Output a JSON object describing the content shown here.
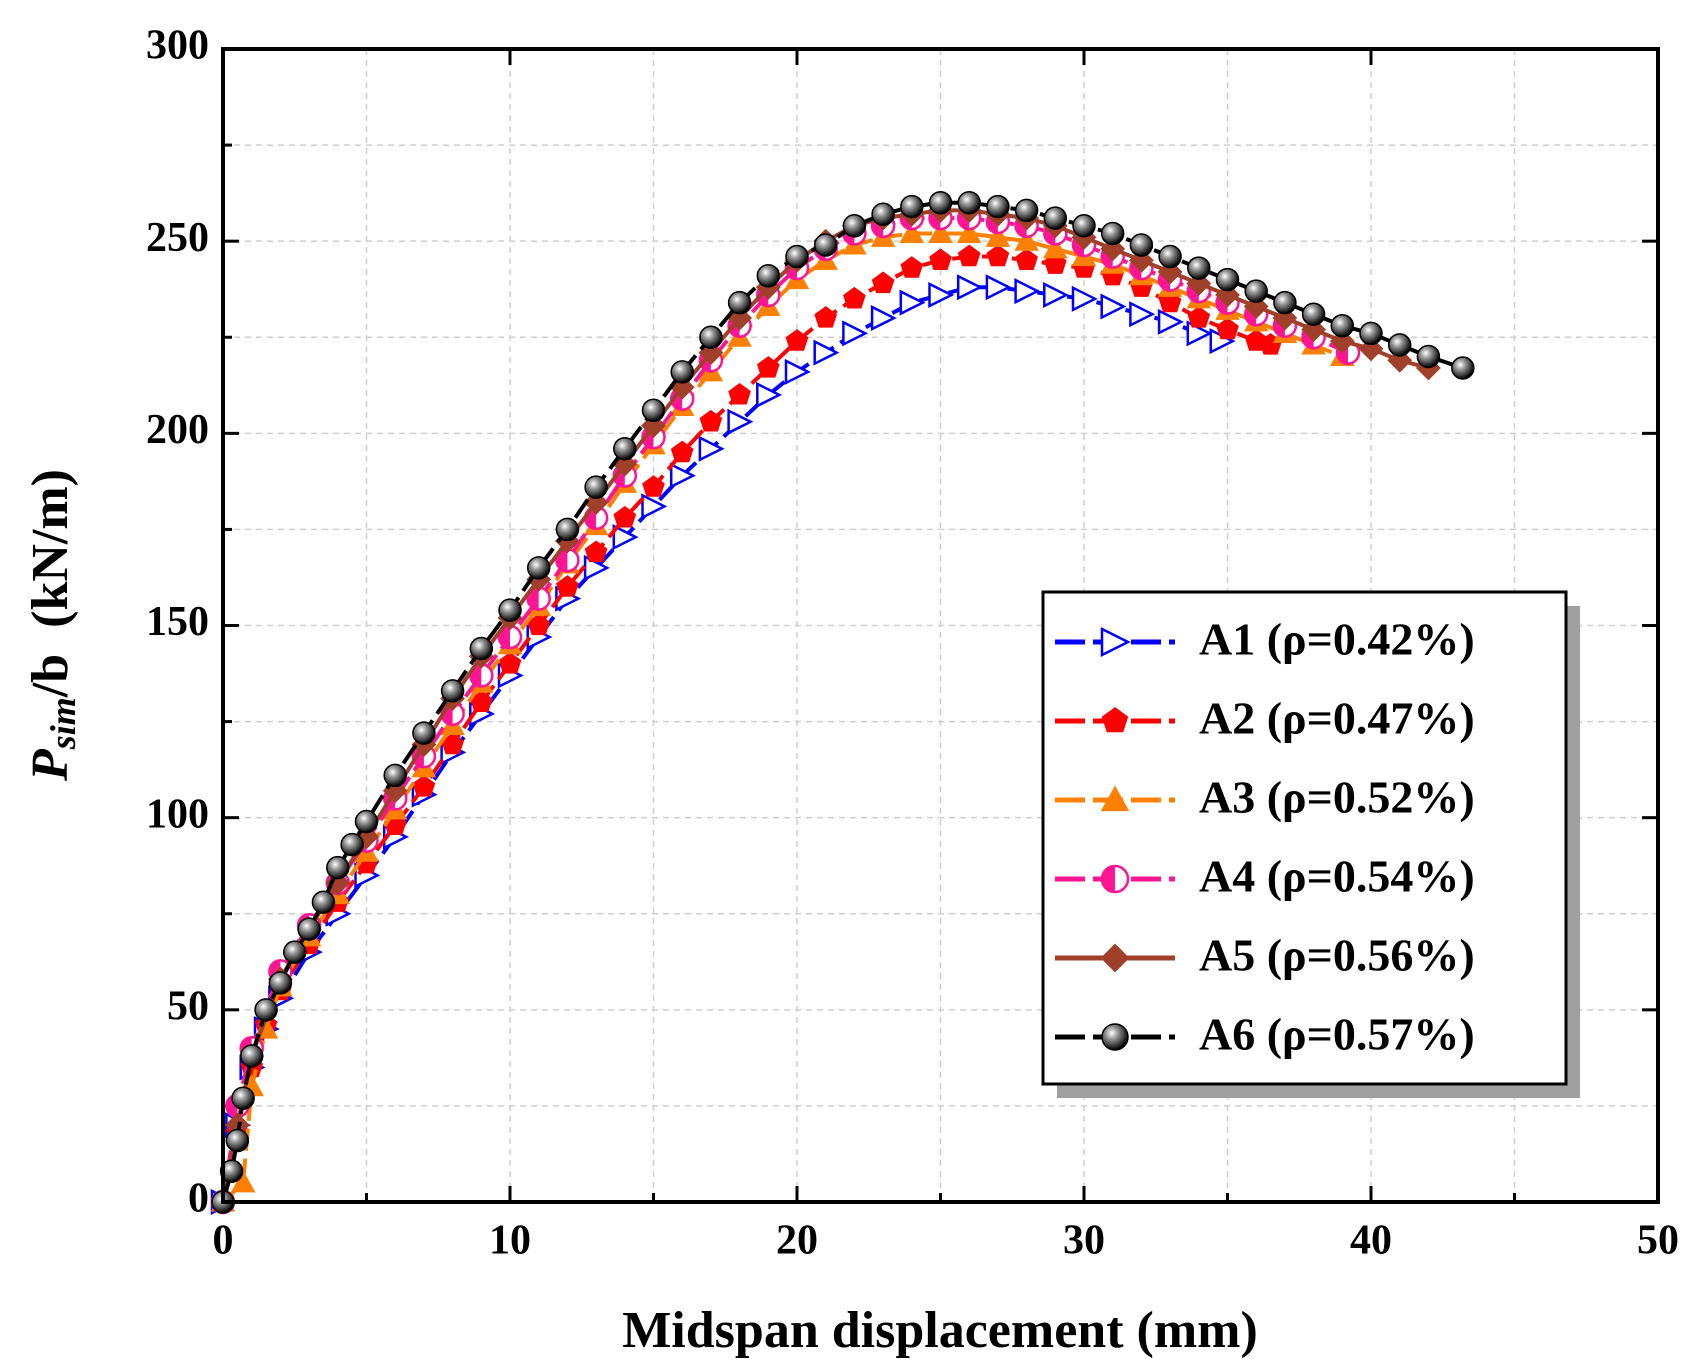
{
  "chart_data": {
    "type": "line",
    "x_label": "Midspan displacement (mm)",
    "y_label": {
      "main": "P",
      "sub": "sim",
      "rest": "/b  (kN/m)"
    },
    "xlim": [
      0,
      50
    ],
    "xticks": [
      0,
      10,
      20,
      30,
      40,
      50
    ],
    "xminor": [
      5,
      15,
      25,
      35,
      45
    ],
    "ylim": [
      0,
      300
    ],
    "yticks": [
      0,
      50,
      100,
      150,
      200,
      250,
      300
    ],
    "yminor": [
      25,
      75,
      125,
      175,
      225,
      275
    ],
    "grid": true,
    "legend": "lower right",
    "series": [
      {
        "name": "A1 (ρ=0.42%)",
        "color": "#0000ff",
        "marker": "triangle-right",
        "dash": true,
        "x": [
          0,
          0.5,
          1,
          1.5,
          2,
          3,
          4,
          5,
          6,
          7,
          8,
          9,
          10,
          11,
          12,
          13,
          14,
          15,
          16,
          17,
          18,
          19,
          20,
          21,
          22,
          23,
          24,
          25,
          26,
          27,
          28,
          29,
          30,
          31,
          32,
          33,
          34,
          34.8
        ],
        "values": [
          0,
          20,
          35,
          45,
          53,
          65,
          75,
          85,
          95,
          106,
          117,
          127,
          137,
          147,
          157,
          165,
          173,
          181,
          189,
          196,
          203,
          210,
          216,
          221,
          226,
          230,
          234,
          236,
          238,
          238,
          237,
          236,
          235,
          233,
          231,
          229,
          226,
          224
        ]
      },
      {
        "name": "A2 (ρ=0.47%)",
        "color": "#ff0000",
        "marker": "pentagon",
        "dash": true,
        "x": [
          0,
          0.5,
          1,
          1.5,
          2,
          3,
          4,
          5,
          6,
          7,
          8,
          9,
          10,
          11,
          12,
          13,
          14,
          15,
          16,
          17,
          18,
          19,
          20,
          21,
          22,
          23,
          24,
          25,
          26,
          27,
          28,
          29,
          30,
          31,
          32,
          33,
          34,
          35,
          36,
          36.5
        ],
        "values": [
          0,
          18,
          35,
          46,
          55,
          67,
          78,
          88,
          98,
          108,
          119,
          130,
          140,
          150,
          160,
          169,
          178,
          186,
          195,
          203,
          210,
          217,
          224,
          230,
          235,
          239,
          243,
          245,
          246,
          246,
          245,
          244,
          243,
          241,
          238,
          234,
          230,
          227,
          224,
          223
        ]
      },
      {
        "name": "A3 (ρ=0.52%)",
        "color": "#ff8000",
        "marker": "triangle-up",
        "dash": true,
        "x": [
          0,
          0.7,
          1,
          1.5,
          2,
          3,
          4,
          5,
          6,
          7,
          8,
          9,
          10,
          11,
          12,
          13,
          14,
          15,
          16,
          17,
          18,
          19,
          20,
          21,
          22,
          23,
          24,
          25,
          26,
          27,
          28,
          29,
          30,
          31,
          32,
          33,
          34,
          35,
          36,
          37,
          38,
          39
        ],
        "values": [
          0,
          5,
          30,
          45,
          56,
          69,
          80,
          91,
          102,
          113,
          124,
          135,
          145,
          155,
          166,
          176,
          187,
          197,
          207,
          216,
          225,
          233,
          240,
          245,
          249,
          251,
          252,
          252,
          252,
          251,
          250,
          248,
          246,
          244,
          241,
          238,
          235,
          232,
          229,
          226,
          223,
          220
        ]
      },
      {
        "name": "A4 (ρ=0.54%)",
        "color": "#ff1493",
        "marker": "half-circle",
        "dash": true,
        "x": [
          0,
          0.5,
          1,
          2,
          3,
          4,
          5,
          6,
          7,
          8,
          9,
          10,
          11,
          12,
          13,
          14,
          15,
          16,
          17,
          18,
          19,
          20,
          21,
          22,
          23,
          24,
          25,
          26,
          27,
          28,
          29,
          30,
          31,
          32,
          33,
          34,
          35,
          36,
          37,
          38,
          39.2
        ],
        "values": [
          0,
          25,
          40,
          60,
          72,
          83,
          94,
          105,
          116,
          127,
          137,
          147,
          157,
          167,
          178,
          189,
          199,
          209,
          219,
          228,
          236,
          243,
          248,
          252,
          254,
          256,
          256,
          256,
          255,
          254,
          252,
          249,
          246,
          243,
          240,
          237,
          234,
          231,
          228,
          225,
          221
        ]
      },
      {
        "name": "A5 (ρ=0.56%)",
        "color": "#a0402a",
        "marker": "diamond",
        "dash": false,
        "x": [
          0,
          0.5,
          1,
          2,
          3,
          4,
          5,
          6,
          7,
          8,
          9,
          10,
          11,
          12,
          13,
          14,
          15,
          16,
          17,
          18,
          19,
          20,
          21,
          22,
          23,
          24,
          25,
          26,
          27,
          28,
          29,
          30,
          31,
          32,
          33,
          34,
          35,
          36,
          37,
          38,
          39,
          40,
          41,
          42
        ],
        "values": [
          0,
          20,
          38,
          58,
          71,
          83,
          95,
          107,
          119,
          131,
          142,
          152,
          162,
          172,
          182,
          192,
          202,
          212,
          221,
          230,
          238,
          245,
          250,
          254,
          256,
          257,
          258,
          258,
          257,
          256,
          254,
          251,
          248,
          245,
          242,
          239,
          236,
          233,
          230,
          227,
          224,
          222,
          219,
          217
        ]
      },
      {
        "name": "A6 (ρ=0.57%)",
        "color": "#000000",
        "marker": "sphere",
        "dash": true,
        "x": [
          0,
          0.3,
          0.5,
          0.7,
          1,
          1.5,
          2,
          2.5,
          3,
          3.5,
          4,
          4.5,
          5,
          6,
          7,
          8,
          9,
          10,
          11,
          12,
          13,
          14,
          15,
          16,
          17,
          18,
          19,
          20,
          21,
          22,
          23,
          24,
          25,
          26,
          27,
          28,
          29,
          30,
          31,
          32,
          33,
          34,
          35,
          36,
          37,
          38,
          39,
          40,
          41,
          42,
          43.2
        ],
        "values": [
          0,
          8,
          16,
          27,
          38,
          50,
          57,
          65,
          71,
          78,
          87,
          93,
          99,
          111,
          122,
          133,
          144,
          154,
          165,
          175,
          186,
          196,
          206,
          216,
          225,
          234,
          241,
          246,
          249,
          254,
          257,
          259,
          260,
          260,
          259,
          258,
          256,
          254,
          252,
          249,
          246,
          243,
          240,
          237,
          234,
          231,
          228,
          226,
          223,
          220,
          217
        ]
      }
    ]
  }
}
